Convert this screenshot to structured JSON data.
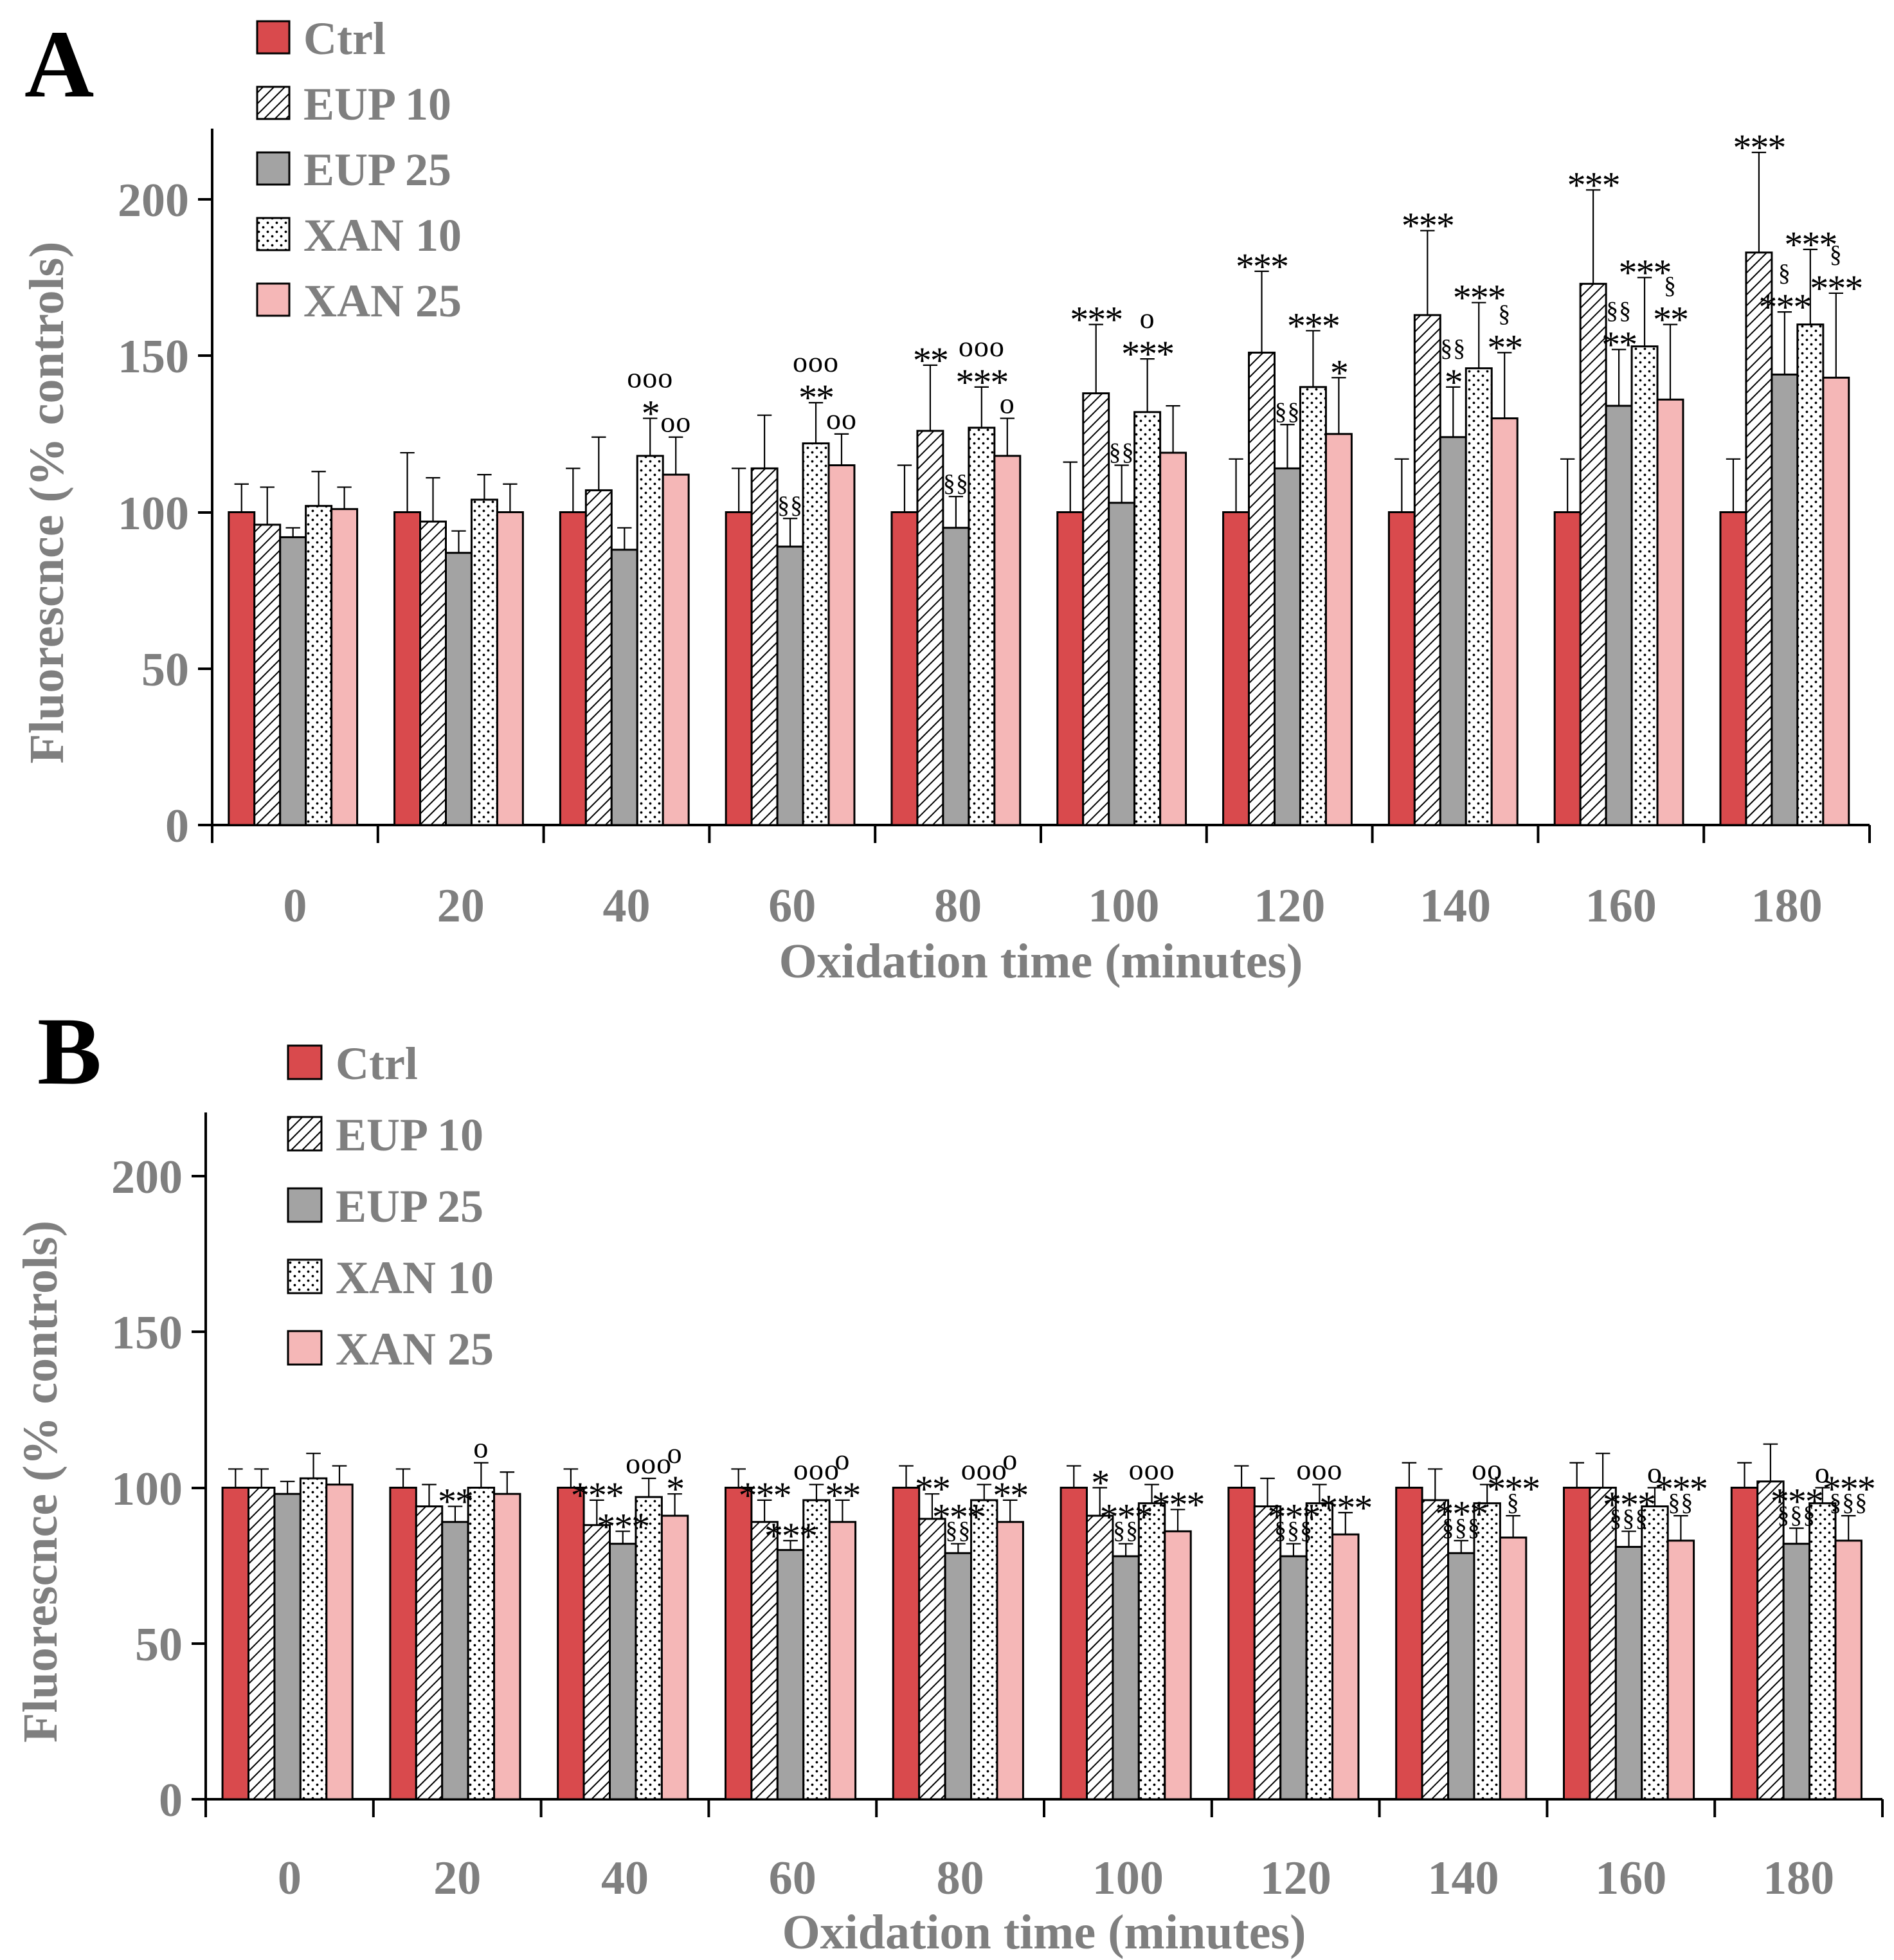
{
  "chart_data": [
    {
      "panel": "A",
      "type": "bar",
      "xlabel": "Oxidation time (minutes)",
      "ylabel": "Fluorescnce (% controls)",
      "ylim": [
        0,
        220
      ],
      "yticks": [
        "0",
        "50",
        "100",
        "150",
        "200"
      ],
      "categories": [
        "0",
        "20",
        "40",
        "60",
        "80",
        "100",
        "120",
        "140",
        "160",
        "180"
      ],
      "legend_position": "top-left",
      "series": [
        {
          "name": "Ctrl",
          "key": "ctrl",
          "values": [
            100,
            100,
            100,
            100,
            100,
            100,
            100,
            100,
            100,
            100
          ],
          "errors": [
            9,
            19,
            14,
            14,
            15,
            16,
            17,
            17,
            17,
            17
          ]
        },
        {
          "name": "EUP 10",
          "key": "eup10",
          "values": [
            96,
            97,
            107,
            114,
            126,
            138,
            151,
            163,
            173,
            183
          ],
          "errors": [
            12,
            14,
            17,
            17,
            21,
            22,
            26,
            27,
            30,
            32
          ]
        },
        {
          "name": "EUP 25",
          "key": "eup25",
          "values": [
            92,
            87,
            88,
            89,
            95,
            103,
            114,
            124,
            134,
            144
          ],
          "errors": [
            3,
            7,
            7,
            9,
            10,
            12,
            14,
            16,
            18,
            20
          ]
        },
        {
          "name": "XAN 10",
          "key": "xan10",
          "values": [
            102,
            104,
            118,
            122,
            127,
            132,
            140,
            146,
            153,
            160
          ],
          "errors": [
            11,
            8,
            12,
            13,
            13,
            17,
            18,
            21,
            22,
            24
          ]
        },
        {
          "name": "XAN 25",
          "key": "xan25",
          "values": [
            101,
            100,
            112,
            115,
            118,
            119,
            125,
            130,
            136,
            143
          ],
          "errors": [
            7,
            9,
            12,
            10,
            12,
            15,
            18,
            21,
            24,
            27
          ]
        }
      ],
      "annotations": [
        {
          "cat": 1,
          "s": 2,
          "lines": [],
          "size": "big"
        },
        {
          "cat": 2,
          "s": 3,
          "lines": [
            "ooo",
            "*"
          ],
          "size": "big"
        },
        {
          "cat": 2,
          "s": 4,
          "lines": [
            "oo"
          ],
          "size": "big"
        },
        {
          "cat": 3,
          "s": 2,
          "lines": [
            "§§"
          ],
          "size": "small"
        },
        {
          "cat": 3,
          "s": 3,
          "lines": [
            "ooo",
            "**"
          ],
          "size": "big"
        },
        {
          "cat": 3,
          "s": 4,
          "lines": [
            "oo"
          ],
          "size": "big"
        },
        {
          "cat": 4,
          "s": 1,
          "lines": [
            "**"
          ],
          "size": "big"
        },
        {
          "cat": 4,
          "s": 2,
          "lines": [
            "§§"
          ],
          "size": "small"
        },
        {
          "cat": 4,
          "s": 3,
          "lines": [
            "ooo",
            "***"
          ],
          "size": "big"
        },
        {
          "cat": 4,
          "s": 4,
          "lines": [
            "o"
          ],
          "size": "big"
        },
        {
          "cat": 5,
          "s": 1,
          "lines": [
            "***"
          ],
          "size": "big"
        },
        {
          "cat": 5,
          "s": 2,
          "lines": [
            "§§"
          ],
          "size": "small"
        },
        {
          "cat": 5,
          "s": 3,
          "lines": [
            "o",
            "***"
          ],
          "size": "big"
        },
        {
          "cat": 6,
          "s": 1,
          "lines": [
            "***"
          ],
          "size": "big"
        },
        {
          "cat": 6,
          "s": 2,
          "lines": [
            "§§"
          ],
          "size": "small"
        },
        {
          "cat": 6,
          "s": 3,
          "lines": [
            "***"
          ],
          "size": "big"
        },
        {
          "cat": 6,
          "s": 4,
          "lines": [
            "*"
          ],
          "size": "big"
        },
        {
          "cat": 7,
          "s": 1,
          "lines": [
            "***"
          ],
          "size": "big"
        },
        {
          "cat": 7,
          "s": 2,
          "lines": [
            "§§",
            "*"
          ],
          "size": "small"
        },
        {
          "cat": 7,
          "s": 3,
          "lines": [
            "***"
          ],
          "size": "big"
        },
        {
          "cat": 7,
          "s": 4,
          "lines": [
            "§",
            "**"
          ],
          "size": "small"
        },
        {
          "cat": 8,
          "s": 1,
          "lines": [
            "***"
          ],
          "size": "big"
        },
        {
          "cat": 8,
          "s": 2,
          "lines": [
            "§§",
            "**"
          ],
          "size": "small"
        },
        {
          "cat": 8,
          "s": 3,
          "lines": [
            "***"
          ],
          "size": "big"
        },
        {
          "cat": 8,
          "s": 4,
          "lines": [
            "§",
            "**"
          ],
          "size": "small"
        },
        {
          "cat": 9,
          "s": 1,
          "lines": [
            "***"
          ],
          "size": "big"
        },
        {
          "cat": 9,
          "s": 2,
          "lines": [
            "§",
            "***"
          ],
          "size": "small"
        },
        {
          "cat": 9,
          "s": 3,
          "lines": [
            "***"
          ],
          "size": "big"
        },
        {
          "cat": 9,
          "s": 4,
          "lines": [
            "§",
            "***"
          ],
          "size": "small"
        }
      ]
    },
    {
      "panel": "B",
      "type": "bar",
      "xlabel": "Oxidation time (minutes)",
      "ylabel": "Fluorescnce (% controls)",
      "ylim": [
        0,
        220
      ],
      "yticks": [
        "0",
        "50",
        "100",
        "150",
        "200"
      ],
      "categories": [
        "0",
        "20",
        "40",
        "60",
        "80",
        "100",
        "120",
        "140",
        "160",
        "180"
      ],
      "legend_position": "top-left",
      "series": [
        {
          "name": "Ctrl",
          "key": "ctrl",
          "values": [
            100,
            100,
            100,
            100,
            100,
            100,
            100,
            100,
            100,
            100
          ],
          "errors": [
            6,
            6,
            6,
            6,
            7,
            7,
            7,
            8,
            8,
            8
          ]
        },
        {
          "name": "EUP 10",
          "key": "eup10",
          "values": [
            100,
            94,
            88,
            89,
            90,
            91,
            94,
            96,
            100,
            102
          ],
          "errors": [
            6,
            7,
            8,
            7,
            8,
            9,
            9,
            10,
            11,
            12
          ]
        },
        {
          "name": "EUP 25",
          "key": "eup25",
          "values": [
            98,
            89,
            82,
            80,
            79,
            78,
            78,
            79,
            81,
            82
          ],
          "errors": [
            4,
            5,
            4,
            3,
            3,
            4,
            4,
            4,
            5,
            5
          ]
        },
        {
          "name": "XAN 10",
          "key": "xan10",
          "values": [
            103,
            100,
            97,
            96,
            96,
            95,
            95,
            95,
            94,
            95
          ],
          "errors": [
            8,
            8,
            6,
            5,
            5,
            6,
            6,
            6,
            6,
            5
          ]
        },
        {
          "name": "XAN 25",
          "key": "xan25",
          "values": [
            101,
            98,
            91,
            89,
            89,
            86,
            85,
            84,
            83,
            83
          ],
          "errors": [
            6,
            7,
            7,
            7,
            7,
            7,
            7,
            7,
            8,
            8
          ]
        }
      ],
      "annotations": [
        {
          "cat": 1,
          "s": 2,
          "lines": [
            "**"
          ],
          "size": "big"
        },
        {
          "cat": 1,
          "s": 3,
          "lines": [
            "o"
          ],
          "size": "big"
        },
        {
          "cat": 2,
          "s": 1,
          "lines": [
            "***"
          ],
          "size": "big"
        },
        {
          "cat": 2,
          "s": 2,
          "lines": [
            "***"
          ],
          "size": "big"
        },
        {
          "cat": 2,
          "s": 3,
          "lines": [
            "ooo"
          ],
          "size": "big"
        },
        {
          "cat": 2,
          "s": 4,
          "lines": [
            "o",
            "*"
          ],
          "size": "big"
        },
        {
          "cat": 3,
          "s": 1,
          "lines": [
            "***"
          ],
          "size": "big"
        },
        {
          "cat": 3,
          "s": 2,
          "lines": [
            "***"
          ],
          "size": "big"
        },
        {
          "cat": 3,
          "s": 3,
          "lines": [
            "ooo"
          ],
          "size": "big"
        },
        {
          "cat": 3,
          "s": 4,
          "lines": [
            "o",
            "**"
          ],
          "size": "big"
        },
        {
          "cat": 4,
          "s": 1,
          "lines": [
            "**"
          ],
          "size": "big"
        },
        {
          "cat": 4,
          "s": 2,
          "lines": [
            "***",
            "§§"
          ],
          "size": "small"
        },
        {
          "cat": 4,
          "s": 3,
          "lines": [
            "ooo"
          ],
          "size": "big"
        },
        {
          "cat": 4,
          "s": 4,
          "lines": [
            "o",
            "**"
          ],
          "size": "big"
        },
        {
          "cat": 5,
          "s": 1,
          "lines": [
            "*"
          ],
          "size": "big"
        },
        {
          "cat": 5,
          "s": 2,
          "lines": [
            "***",
            "§§"
          ],
          "size": "small"
        },
        {
          "cat": 5,
          "s": 3,
          "lines": [
            "ooo"
          ],
          "size": "big"
        },
        {
          "cat": 5,
          "s": 4,
          "lines": [
            "***"
          ],
          "size": "big"
        },
        {
          "cat": 6,
          "s": 2,
          "lines": [
            "***",
            "§§§"
          ],
          "size": "small"
        },
        {
          "cat": 6,
          "s": 3,
          "lines": [
            "ooo"
          ],
          "size": "big"
        },
        {
          "cat": 6,
          "s": 4,
          "lines": [
            "***"
          ],
          "size": "big"
        },
        {
          "cat": 7,
          "s": 2,
          "lines": [
            "***",
            "§§§"
          ],
          "size": "small"
        },
        {
          "cat": 7,
          "s": 3,
          "lines": [
            "oo"
          ],
          "size": "big"
        },
        {
          "cat": 7,
          "s": 4,
          "lines": [
            "***",
            "§"
          ],
          "size": "small"
        },
        {
          "cat": 8,
          "s": 2,
          "lines": [
            "***",
            "§§§"
          ],
          "size": "small"
        },
        {
          "cat": 8,
          "s": 3,
          "lines": [
            "o"
          ],
          "size": "big"
        },
        {
          "cat": 8,
          "s": 4,
          "lines": [
            "***",
            "§§"
          ],
          "size": "small"
        },
        {
          "cat": 9,
          "s": 2,
          "lines": [
            "***",
            "§§§"
          ],
          "size": "small"
        },
        {
          "cat": 9,
          "s": 3,
          "lines": [
            "o"
          ],
          "size": "big"
        },
        {
          "cat": 9,
          "s": 4,
          "lines": [
            "***",
            "§§§"
          ],
          "size": "small"
        }
      ]
    }
  ],
  "colors": {
    "ctrl": "#d94a4d",
    "eup25": "#a3a3a3",
    "xan25": "#f5b7b7",
    "axis_text": "#7f7f7f"
  }
}
